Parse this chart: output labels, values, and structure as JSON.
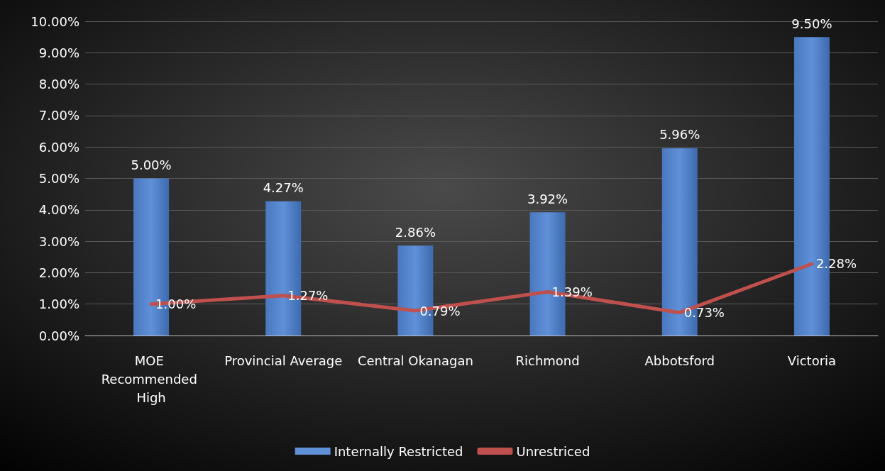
{
  "chart_data": {
    "type": "bar",
    "categories": [
      "MOE Recommended High",
      "Provincial Average",
      "Central Okanagan",
      "Richmond",
      "Abbotsford",
      "Victoria"
    ],
    "series": [
      {
        "name": "Internally Restricted",
        "color": "#5f90d8",
        "values": [
          5.0,
          4.27,
          2.86,
          3.92,
          5.96,
          9.5
        ],
        "value_labels": [
          "5.00%",
          "4.27%",
          "2.86%",
          "3.92%",
          "5.96%",
          "9.50%"
        ]
      },
      {
        "name": "Unrestriced",
        "type": "line",
        "color": "#c0504d",
        "values": [
          1.0,
          1.27,
          0.79,
          1.39,
          0.73,
          2.28
        ],
        "value_labels": [
          "1.00%",
          "1.27%",
          "0.79%",
          "1.39%",
          "0.73%",
          "2.28%"
        ]
      }
    ],
    "ylim": [
      0,
      10
    ],
    "yticks": [
      {
        "value": 0,
        "label": "0.00%"
      },
      {
        "value": 1,
        "label": "1.00%"
      },
      {
        "value": 2,
        "label": "2.00%"
      },
      {
        "value": 3,
        "label": "3.00%"
      },
      {
        "value": 4,
        "label": "4.00%"
      },
      {
        "value": 5,
        "label": "5.00%"
      },
      {
        "value": 6,
        "label": "6.00%"
      },
      {
        "value": 7,
        "label": "7.00%"
      },
      {
        "value": 8,
        "label": "8.00%"
      },
      {
        "value": 9,
        "label": "9.00%"
      },
      {
        "value": 10,
        "label": "10.00%"
      }
    ],
    "grid": "y",
    "legend": "bottom",
    "marker": "none",
    "line_style": "solid"
  }
}
